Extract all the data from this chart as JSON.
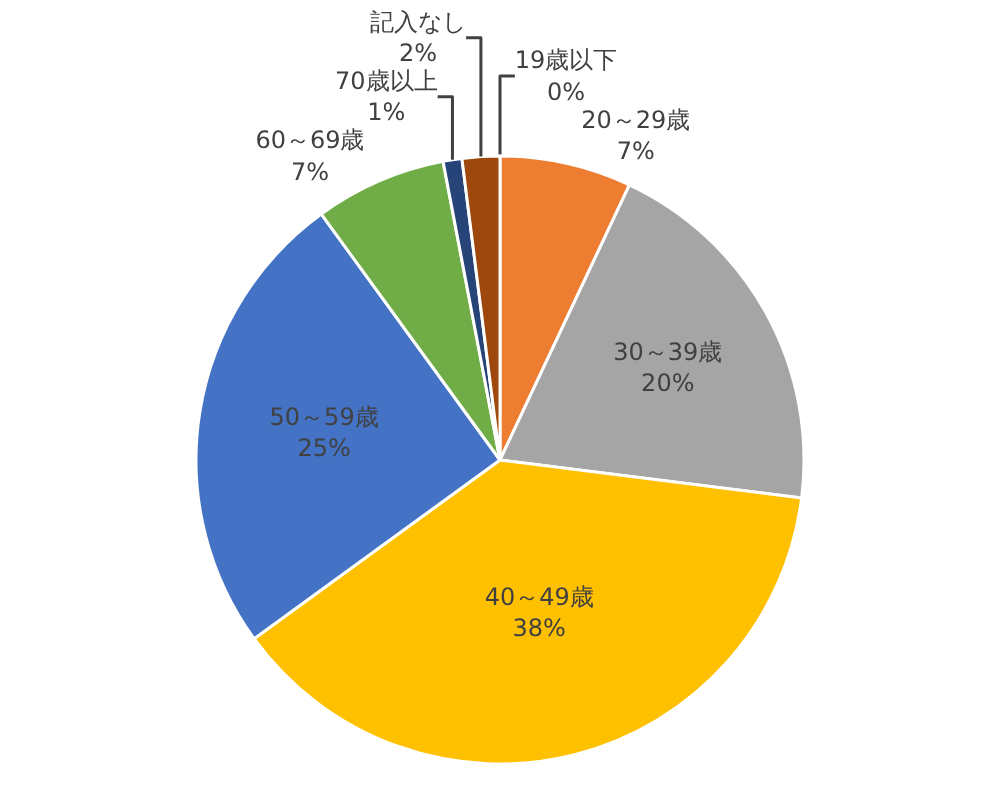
{
  "chart_data": {
    "type": "pie",
    "categories": [
      "19歳以下",
      "20～29歳",
      "30～39歳",
      "40～49歳",
      "50～59歳",
      "60～69歳",
      "70歳以上",
      "記入なし"
    ],
    "values": [
      0,
      7,
      20,
      38,
      25,
      7,
      1,
      2
    ],
    "colors": [
      "#5b9bd5",
      "#ed7d31",
      "#a5a5a5",
      "#ffc000",
      "#4472c4",
      "#70ad47",
      "#264478",
      "#9e480e"
    ],
    "value_labels": [
      "0%",
      "7%",
      "20%",
      "38%",
      "25%",
      "7%",
      "1%",
      "2%"
    ],
    "legend": false
  }
}
